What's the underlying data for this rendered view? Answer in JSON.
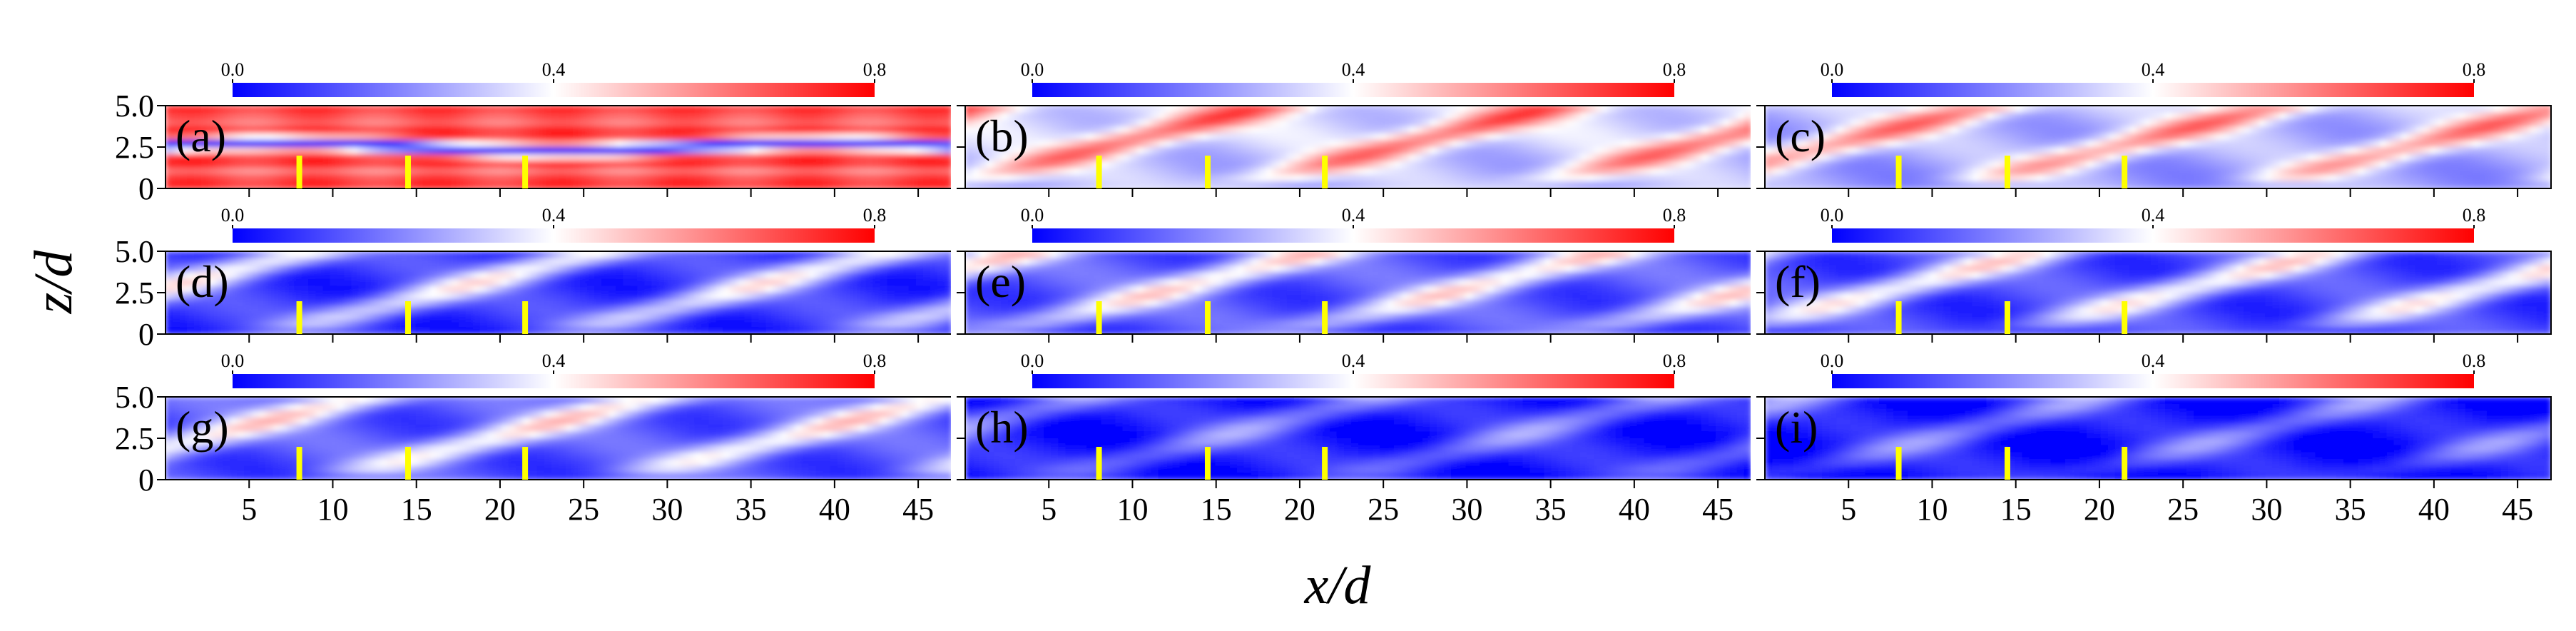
{
  "chart_data": {
    "type": "heatmap",
    "title": "",
    "xlabel": "x/d",
    "ylabel": "z/d",
    "xlim": [
      0,
      47
    ],
    "ylim": [
      0,
      5.0
    ],
    "x_ticks": [
      5,
      10,
      15,
      20,
      25,
      30,
      35,
      40,
      45
    ],
    "x_tick_labels": [
      "5",
      "10",
      "15",
      "20",
      "25",
      "30",
      "35",
      "40",
      "45"
    ],
    "y_ticks": [
      0,
      2.5,
      5.0
    ],
    "y_tick_labels": [
      "0",
      "2.5",
      "5.0"
    ],
    "colorbar": {
      "range": [
        0.0,
        0.8
      ],
      "tick_labels": [
        "0.0",
        "0.4",
        "0.8"
      ],
      "colors": [
        "#0000ff",
        "#ffffff",
        "#ff0000"
      ]
    },
    "marker_x": [
      8,
      14.5,
      21.5
    ],
    "marker_color": "#ffff00",
    "panels": [
      {
        "label": "(a)",
        "pattern": "horizontal-bands",
        "mean": 0.62
      },
      {
        "label": "(b)",
        "pattern": "oblique-streaks",
        "mean": 0.38
      },
      {
        "label": "(c)",
        "pattern": "oblique-streaks",
        "mean": 0.34
      },
      {
        "label": "(d)",
        "pattern": "oblique-streaks",
        "mean": 0.18
      },
      {
        "label": "(e)",
        "pattern": "oblique-streaks",
        "mean": 0.22
      },
      {
        "label": "(f)",
        "pattern": "oblique-streaks",
        "mean": 0.2
      },
      {
        "label": "(g)",
        "pattern": "oblique-streaks",
        "mean": 0.22
      },
      {
        "label": "(h)",
        "pattern": "weak-streaks",
        "mean": 0.14
      },
      {
        "label": "(i)",
        "pattern": "weak-streaks",
        "mean": 0.13
      }
    ]
  }
}
